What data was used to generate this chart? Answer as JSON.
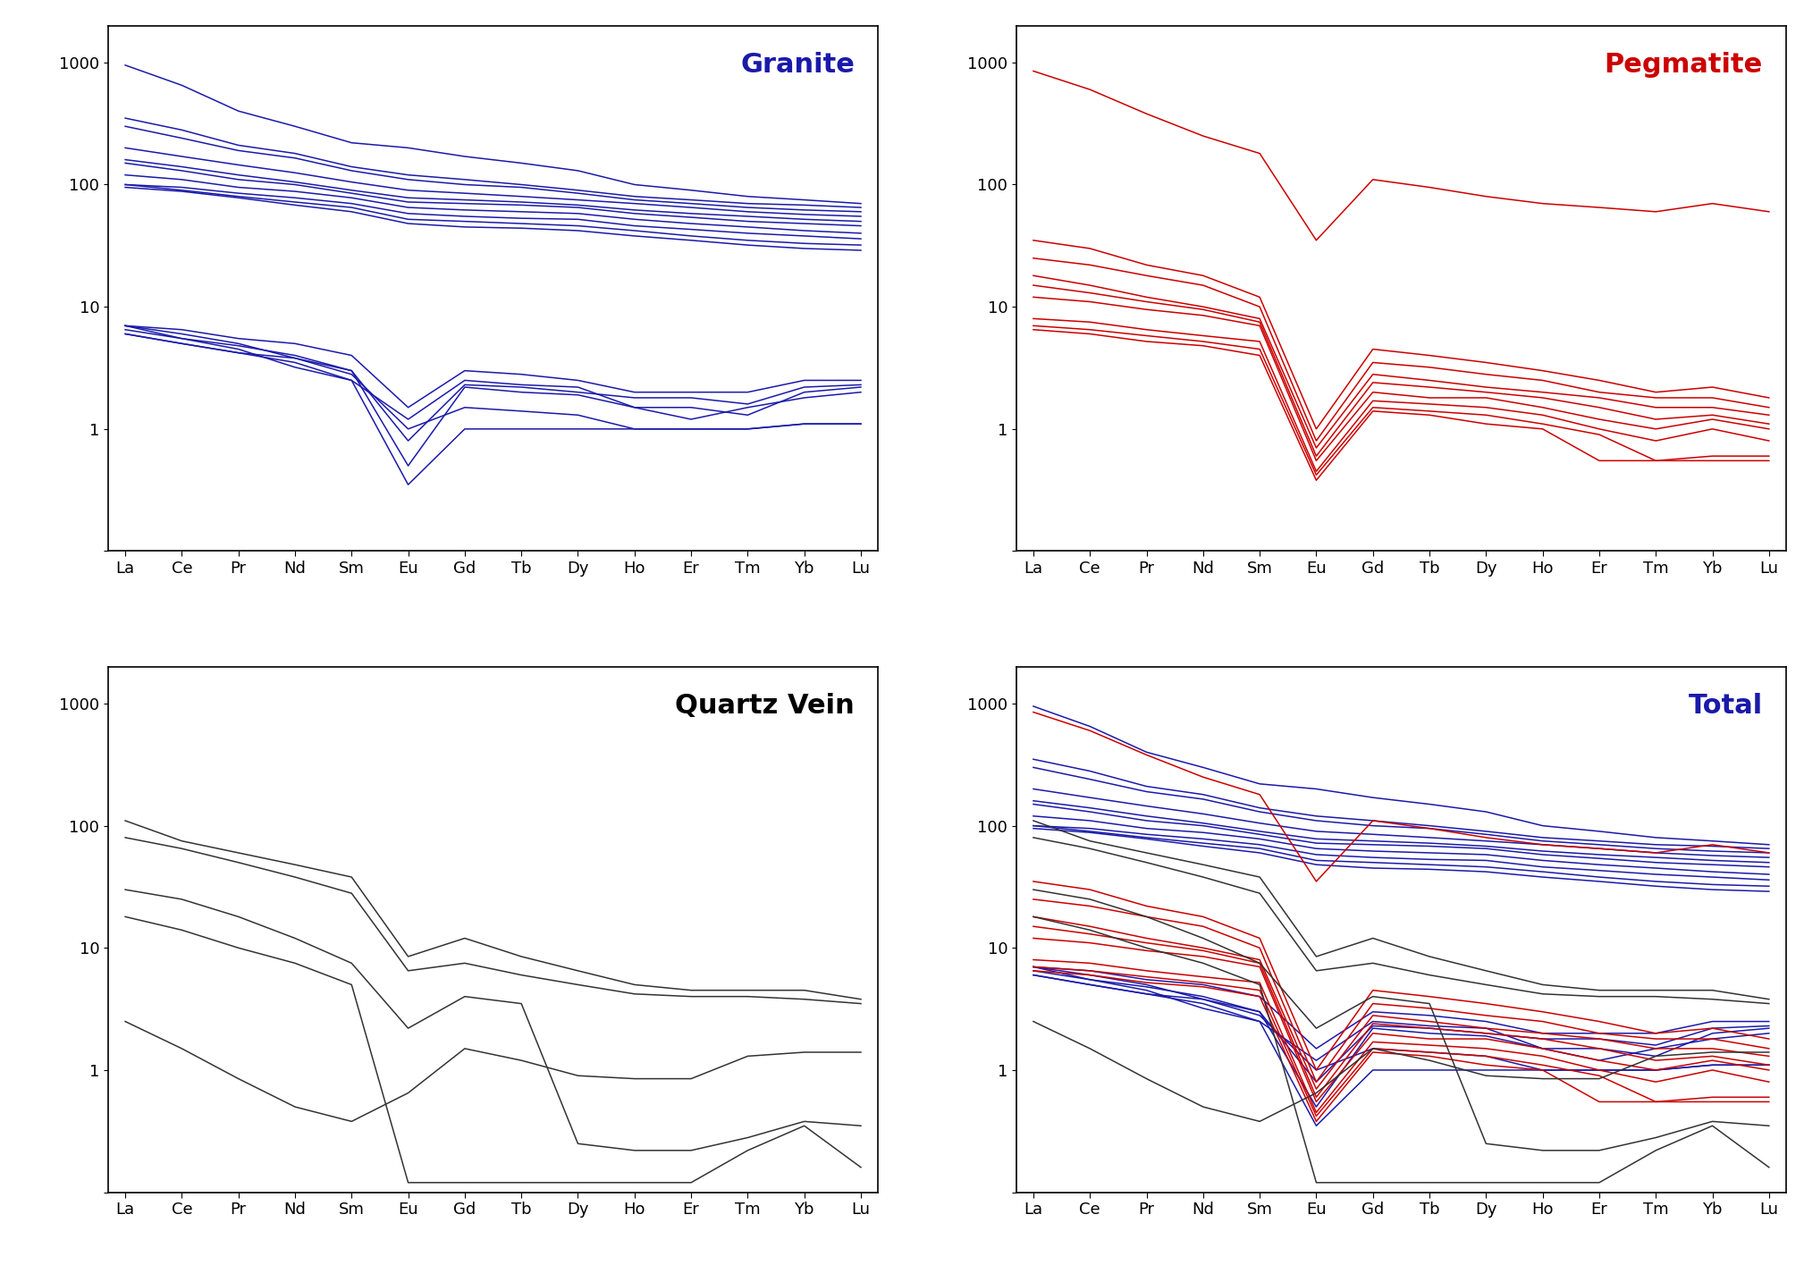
{
  "elements": [
    "La",
    "Ce",
    "Pr",
    "Nd",
    "Sm",
    "Eu",
    "Gd",
    "Tb",
    "Dy",
    "Ho",
    "Er",
    "Tm",
    "Yb",
    "Lu"
  ],
  "granite_color": "#1a1aaa",
  "pegmatite_color": "#cc0000",
  "quartzv_color": "#333333",
  "granite_series": [
    [
      950,
      650,
      400,
      300,
      220,
      200,
      170,
      150,
      130,
      100,
      90,
      80,
      75,
      70
    ],
    [
      350,
      280,
      210,
      180,
      140,
      120,
      110,
      100,
      90,
      80,
      75,
      70,
      68,
      65
    ],
    [
      300,
      240,
      190,
      165,
      130,
      110,
      100,
      95,
      85,
      75,
      70,
      65,
      62,
      60
    ],
    [
      200,
      170,
      145,
      125,
      105,
      90,
      85,
      80,
      75,
      70,
      65,
      60,
      57,
      55
    ],
    [
      160,
      140,
      120,
      105,
      90,
      78,
      75,
      72,
      68,
      62,
      58,
      55,
      52,
      50
    ],
    [
      150,
      130,
      110,
      100,
      85,
      72,
      70,
      68,
      65,
      58,
      54,
      50,
      48,
      46
    ],
    [
      120,
      110,
      95,
      88,
      78,
      65,
      62,
      60,
      58,
      52,
      48,
      45,
      42,
      40
    ],
    [
      100,
      95,
      85,
      78,
      70,
      58,
      55,
      53,
      52,
      46,
      43,
      40,
      38,
      36
    ],
    [
      100,
      90,
      80,
      72,
      65,
      52,
      50,
      48,
      46,
      42,
      38,
      35,
      33,
      32
    ],
    [
      95,
      88,
      78,
      68,
      60,
      48,
      45,
      44,
      42,
      38,
      35,
      32,
      30,
      29
    ],
    [
      7,
      5.5,
      4.5,
      3.2,
      2.5,
      1.2,
      2.5,
      2.3,
      2.2,
      1.5,
      1.2,
      1.5,
      1.8,
      2.0
    ],
    [
      7,
      6,
      5,
      3.8,
      2.8,
      1.0,
      1.5,
      1.4,
      1.3,
      1.0,
      1.0,
      1.0,
      1.1,
      1.1
    ],
    [
      6,
      5,
      4.2,
      3.5,
      2.5,
      0.35,
      1.0,
      1.0,
      1.0,
      1.0,
      1.0,
      1.0,
      1.1,
      1.1
    ],
    [
      6.5,
      5.5,
      4.8,
      4.0,
      3.0,
      0.5,
      2.2,
      2.0,
      1.9,
      1.5,
      1.5,
      1.3,
      2.0,
      2.2
    ],
    [
      6,
      5,
      4.2,
      3.8,
      3.0,
      0.8,
      2.3,
      2.2,
      2.0,
      1.8,
      1.8,
      1.6,
      2.2,
      2.3
    ],
    [
      7,
      6.5,
      5.5,
      5.0,
      4.0,
      1.5,
      3.0,
      2.8,
      2.5,
      2.0,
      2.0,
      2.0,
      2.5,
      2.5
    ]
  ],
  "pegmatite_series": [
    [
      850,
      600,
      380,
      250,
      180,
      35,
      110,
      95,
      80,
      70,
      65,
      60,
      70,
      60
    ],
    [
      35,
      30,
      22,
      18,
      12,
      1.0,
      4.5,
      4.0,
      3.5,
      3.0,
      2.5,
      2.0,
      2.2,
      1.8
    ],
    [
      25,
      22,
      18,
      15,
      10,
      0.8,
      3.5,
      3.2,
      2.8,
      2.5,
      2.0,
      1.8,
      1.8,
      1.5
    ],
    [
      18,
      15,
      12,
      10,
      8,
      0.7,
      2.8,
      2.5,
      2.2,
      2.0,
      1.8,
      1.5,
      1.5,
      1.3
    ],
    [
      15,
      13,
      11,
      9.5,
      7.5,
      0.6,
      2.4,
      2.2,
      2.0,
      1.8,
      1.5,
      1.2,
      1.3,
      1.1
    ],
    [
      12,
      11,
      9.5,
      8.5,
      7.0,
      0.55,
      2.0,
      1.8,
      1.8,
      1.5,
      1.2,
      1.0,
      1.2,
      1.0
    ],
    [
      8,
      7.5,
      6.5,
      5.8,
      5.2,
      0.45,
      1.7,
      1.6,
      1.5,
      1.3,
      1.0,
      0.8,
      1.0,
      0.8
    ],
    [
      7,
      6.5,
      5.8,
      5.2,
      4.5,
      0.42,
      1.5,
      1.4,
      1.3,
      1.1,
      0.9,
      0.55,
      0.55,
      0.55
    ],
    [
      6.5,
      6.0,
      5.2,
      4.8,
      4.0,
      0.38,
      1.4,
      1.3,
      1.1,
      1.0,
      0.55,
      0.55,
      0.6,
      0.6
    ]
  ],
  "quartzv_series": [
    [
      110,
      75,
      60,
      48,
      38,
      8.5,
      12,
      8.5,
      6.5,
      5.0,
      4.5,
      4.5,
      4.5,
      3.8
    ],
    [
      80,
      65,
      50,
      38,
      28,
      6.5,
      7.5,
      6.0,
      5.0,
      4.2,
      4.0,
      4.0,
      3.8,
      3.5
    ],
    [
      30,
      25,
      18,
      12,
      7.5,
      2.2,
      4.0,
      3.5,
      0.25,
      0.22,
      0.22,
      0.28,
      0.38,
      0.35
    ],
    [
      18,
      14,
      10,
      7.5,
      5.0,
      0.12,
      0.12,
      0.12,
      0.12,
      0.12,
      0.12,
      0.22,
      0.35,
      0.16
    ],
    [
      2.5,
      1.5,
      0.85,
      0.5,
      0.38,
      0.65,
      1.5,
      1.2,
      0.9,
      0.85,
      0.85,
      1.3,
      1.4,
      1.4
    ]
  ],
  "background_color": "#ffffff",
  "panel_titles": [
    "Granite",
    "Pegmatite",
    "Quartz Vein",
    "Total"
  ],
  "panel_title_colors": [
    "#1a1aaa",
    "#cc0000",
    "#000000",
    "#1a1aaa"
  ],
  "linewidth": 1.1,
  "title_fontsize": 22,
  "tick_fontsize": 13
}
